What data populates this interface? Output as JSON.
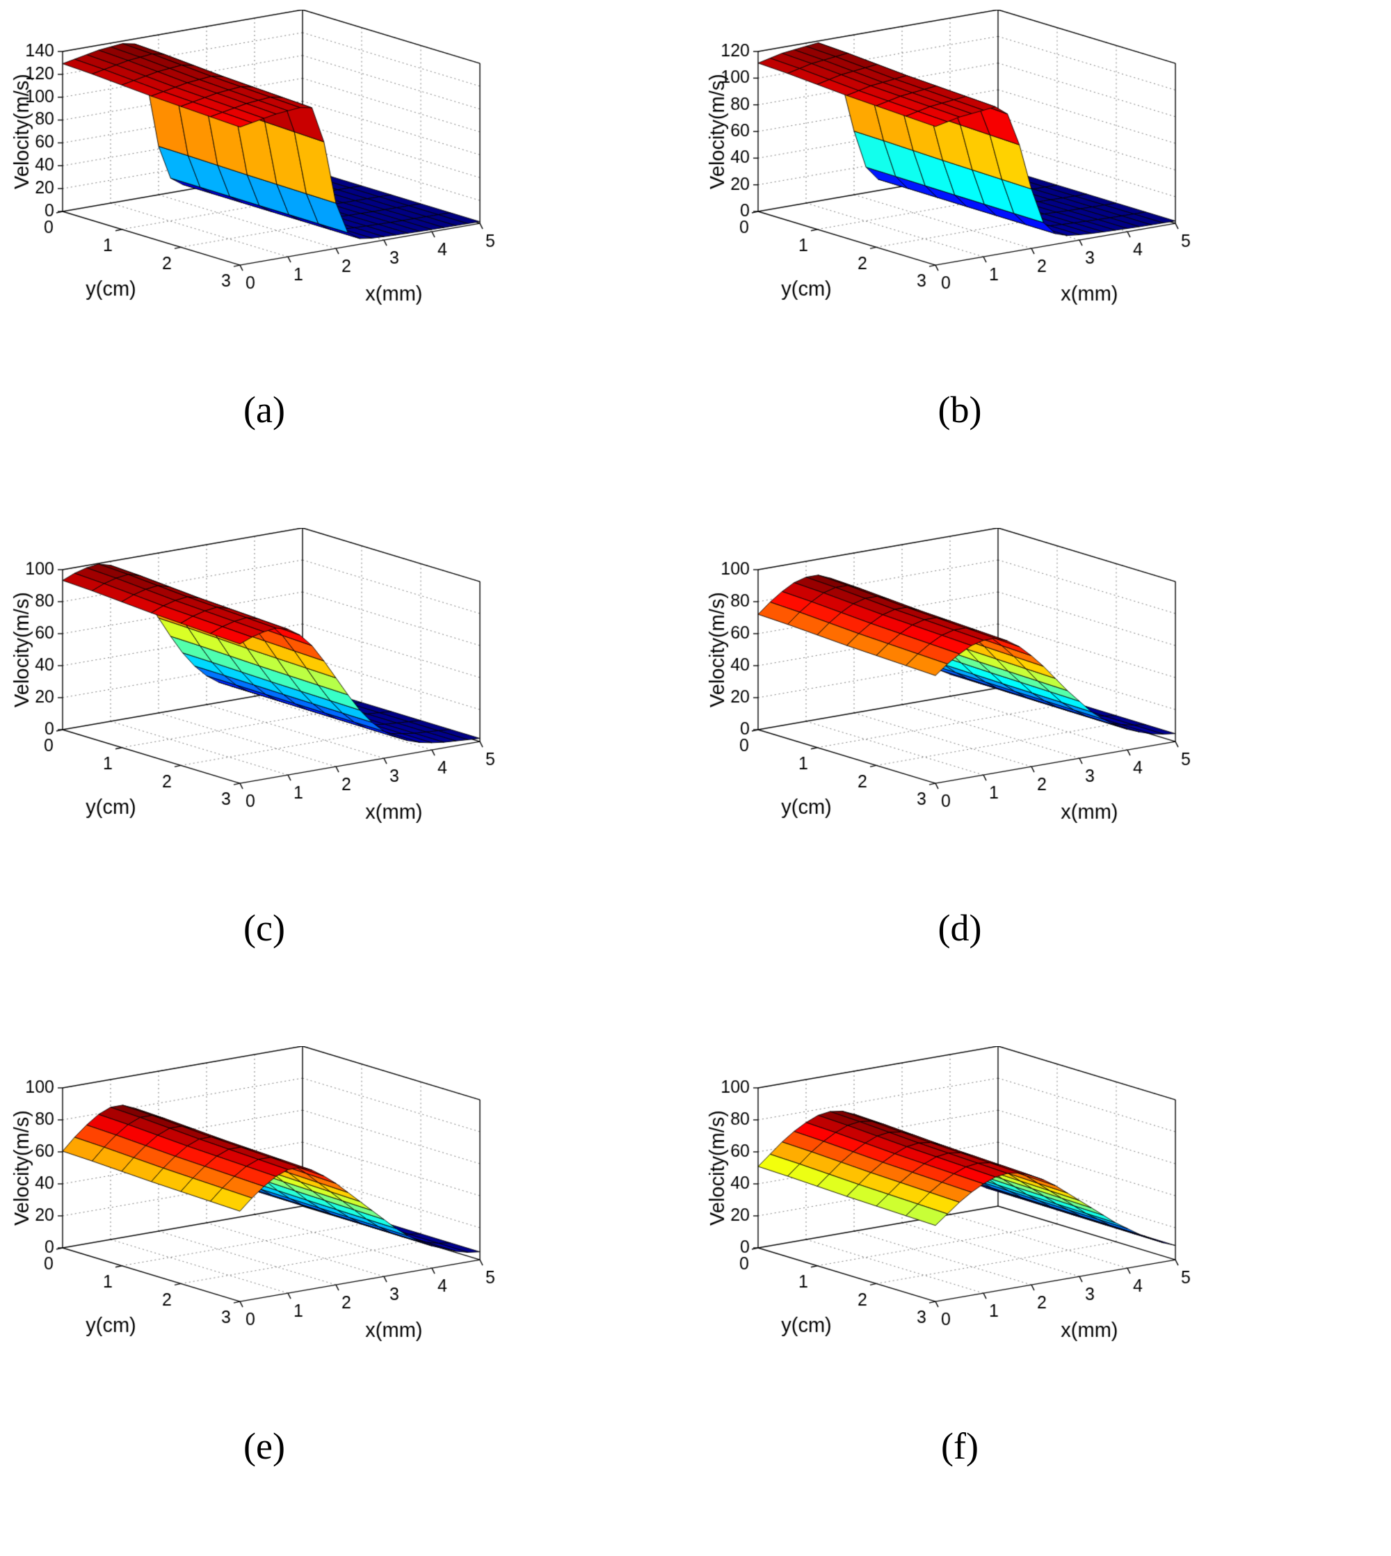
{
  "figure": {
    "background": "#ffffff",
    "grid_line_style": "dotted",
    "mesh_edge_color": "#000000",
    "colormap_name": "jet"
  },
  "chart_data": [
    {
      "type": "surface",
      "panel_label": "(a)",
      "xlabel": "x(mm)",
      "ylabel": "y(cm)",
      "zlabel": "Velocity(m/s)",
      "x_range": [
        0,
        5
      ],
      "y_range": [
        0,
        3
      ],
      "z_range": [
        0,
        140
      ],
      "x_ticks": [
        0,
        1,
        2,
        3,
        4,
        5
      ],
      "y_ticks": [
        0,
        1,
        2,
        3
      ],
      "z_ticks": [
        0,
        20,
        40,
        60,
        80,
        100,
        120,
        140
      ],
      "x_grid": [
        0,
        0.25,
        0.5,
        0.75,
        1,
        1.25,
        1.5,
        1.75,
        2,
        2.25,
        2.5,
        2.75,
        3,
        3.25,
        3.5,
        3.75,
        4,
        4.25,
        4.5,
        4.75,
        5
      ],
      "y_grid": [
        0,
        0.5,
        1,
        1.5,
        2,
        2.5,
        3
      ],
      "velocity_profile_y0": [
        122,
        124,
        126,
        128,
        129,
        130,
        128,
        96,
        40,
        12,
        5,
        3.5,
        3,
        2.6,
        2.3,
        2.1,
        1.9,
        1.8,
        1.7,
        1.6,
        1.5
      ],
      "y_shape_factors": [
        1.06,
        1.05,
        1.035,
        1.02,
        1.01,
        1.0,
        0.99
      ],
      "peak_velocity": 138,
      "colormap": "jet"
    },
    {
      "type": "surface",
      "panel_label": "(b)",
      "xlabel": "x(mm)",
      "ylabel": "y(cm)",
      "zlabel": "Velocity(m/s)",
      "x_range": [
        0,
        5
      ],
      "y_range": [
        0,
        3
      ],
      "z_range": [
        0,
        120
      ],
      "x_ticks": [
        0,
        1,
        2,
        3,
        4,
        5
      ],
      "y_ticks": [
        0,
        1,
        2,
        3
      ],
      "z_ticks": [
        0,
        20,
        40,
        60,
        80,
        100,
        120
      ],
      "x_grid": [
        0,
        0.25,
        0.5,
        0.75,
        1,
        1.25,
        1.5,
        1.75,
        2,
        2.25,
        2.5,
        2.75,
        3,
        3.25,
        3.5,
        3.75,
        4,
        4.25,
        4.5,
        4.75,
        5
      ],
      "y_grid": [
        0,
        0.5,
        1,
        1.5,
        2,
        2.5,
        3
      ],
      "velocity_profile_y0": [
        105,
        107,
        109,
        110,
        111,
        112,
        105,
        80,
        45,
        18,
        8,
        5,
        4,
        3.4,
        3,
        2.7,
        2.4,
        2.2,
        2,
        1.9,
        1.8
      ],
      "y_shape_factors": [
        1.06,
        1.05,
        1.035,
        1.02,
        1.01,
        1.0,
        0.99
      ],
      "peak_velocity": 119,
      "colormap": "jet"
    },
    {
      "type": "surface",
      "panel_label": "(c)",
      "xlabel": "x(mm)",
      "ylabel": "y(cm)",
      "zlabel": "Velocity(m/s)",
      "x_range": [
        0,
        5
      ],
      "y_range": [
        0,
        3
      ],
      "z_range": [
        0,
        100
      ],
      "x_ticks": [
        0,
        1,
        2,
        3,
        4,
        5
      ],
      "y_ticks": [
        0,
        1,
        2,
        3
      ],
      "z_ticks": [
        0,
        20,
        40,
        60,
        80,
        100
      ],
      "x_grid": [
        0,
        0.25,
        0.5,
        0.75,
        1,
        1.25,
        1.5,
        1.75,
        2,
        2.25,
        2.5,
        2.75,
        3,
        3.25,
        3.5,
        3.75,
        4,
        4.25,
        4.5,
        4.75,
        5
      ],
      "y_grid": [
        0,
        0.5,
        1,
        1.5,
        2,
        2.5,
        3
      ],
      "velocity_profile_y0": [
        88,
        91,
        93,
        94,
        92,
        87,
        79,
        68,
        56,
        44,
        33,
        24,
        17,
        12,
        8.5,
        6,
        4.5,
        3.5,
        3,
        2.5,
        2
      ],
      "y_shape_factors": [
        1.06,
        1.05,
        1.035,
        1.02,
        1.01,
        1.0,
        0.99
      ],
      "peak_velocity": 100,
      "colormap": "jet"
    },
    {
      "type": "surface",
      "panel_label": "(d)",
      "xlabel": "x(mm)",
      "ylabel": "y(cm)",
      "zlabel": "Velocity(m/s)",
      "x_range": [
        0,
        5
      ],
      "y_range": [
        0,
        3
      ],
      "z_range": [
        0,
        100
      ],
      "x_ticks": [
        0,
        1,
        2,
        3,
        4,
        5
      ],
      "y_ticks": [
        0,
        1,
        2,
        3
      ],
      "z_ticks": [
        0,
        20,
        40,
        60,
        80,
        100
      ],
      "x_grid": [
        0,
        0.25,
        0.5,
        0.75,
        1,
        1.25,
        1.5,
        1.75,
        2,
        2.25,
        2.5,
        2.75,
        3,
        3.25,
        3.5,
        3.75,
        4,
        4.25,
        4.5,
        4.75,
        5
      ],
      "y_grid": [
        0,
        0.5,
        1,
        1.5,
        2,
        2.5,
        3
      ],
      "velocity_profile_y0": [
        68,
        74,
        79,
        83,
        85,
        85,
        82,
        77,
        70,
        62,
        53,
        44,
        36,
        28,
        22,
        17,
        13,
        10,
        7.5,
        6,
        5
      ],
      "y_shape_factors": [
        1.06,
        1.05,
        1.035,
        1.02,
        1.01,
        1.0,
        0.99
      ],
      "peak_velocity": 90,
      "colormap": "jet"
    },
    {
      "type": "surface",
      "panel_label": "(e)",
      "xlabel": "x(mm)",
      "ylabel": "y(cm)",
      "zlabel": "Velocity(m/s)",
      "x_range": [
        0,
        5
      ],
      "y_range": [
        0,
        3
      ],
      "z_range": [
        0,
        100
      ],
      "x_ticks": [
        0,
        1,
        2,
        3,
        4,
        5
      ],
      "y_ticks": [
        0,
        1,
        2,
        3
      ],
      "z_ticks": [
        0,
        20,
        40,
        60,
        80,
        100
      ],
      "x_grid": [
        0,
        0.25,
        0.5,
        0.75,
        1,
        1.25,
        1.5,
        1.75,
        2,
        2.25,
        2.5,
        2.75,
        3,
        3.25,
        3.5,
        3.75,
        4,
        4.25,
        4.5,
        4.75,
        5
      ],
      "y_grid": [
        0,
        0.5,
        1,
        1.5,
        2,
        2.5,
        3
      ],
      "velocity_profile_y0": [
        57,
        64,
        70,
        75,
        78,
        78,
        75,
        70,
        64,
        57,
        50,
        43,
        36,
        29,
        23,
        18,
        14,
        11,
        8,
        6,
        5
      ],
      "y_shape_factors": [
        1.06,
        1.05,
        1.035,
        1.02,
        1.01,
        1.0,
        0.99
      ],
      "peak_velocity": 83,
      "colormap": "jet"
    },
    {
      "type": "surface",
      "panel_label": "(f)",
      "xlabel": "x(mm)",
      "ylabel": "y(cm)",
      "zlabel": "Velocity(m/s)",
      "x_range": [
        0,
        5
      ],
      "y_range": [
        0,
        3
      ],
      "z_range": [
        0,
        100
      ],
      "x_ticks": [
        0,
        1,
        2,
        3,
        4,
        5
      ],
      "y_ticks": [
        0,
        1,
        2,
        3
      ],
      "z_ticks": [
        0,
        20,
        40,
        60,
        80,
        100
      ],
      "x_grid": [
        0,
        0.25,
        0.5,
        0.75,
        1,
        1.25,
        1.5,
        1.75,
        2,
        2.25,
        2.5,
        2.75,
        3,
        3.25,
        3.5,
        3.75,
        4,
        4.25,
        4.5,
        4.75,
        5
      ],
      "y_grid": [
        0,
        0.5,
        1,
        1.5,
        2,
        2.5,
        3
      ],
      "velocity_profile_y0": [
        48,
        54,
        60,
        65,
        69,
        72,
        73,
        72,
        69,
        65,
        60,
        54,
        48,
        42,
        36,
        30,
        25,
        20,
        16,
        12,
        9
      ],
      "y_shape_factors": [
        1.06,
        1.05,
        1.035,
        1.02,
        1.01,
        1.0,
        0.99
      ],
      "peak_velocity": 77,
      "colormap": "jet"
    }
  ]
}
